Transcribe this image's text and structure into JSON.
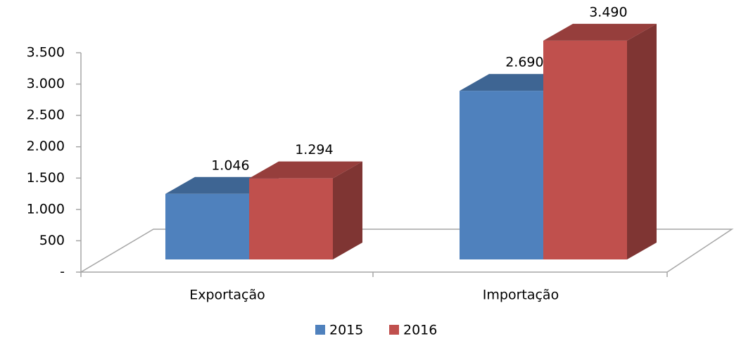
{
  "chart_data": {
    "type": "bar3d",
    "categories": [
      "Exportação",
      "Importação"
    ],
    "series": [
      {
        "name": "2015",
        "color": "#4f81bd",
        "values": [
          1046,
          2690
        ],
        "value_labels": [
          "1.046",
          "2.690"
        ]
      },
      {
        "name": "2016",
        "color": "#c0504d",
        "values": [
          1294,
          3490
        ],
        "value_labels": [
          "1.294",
          "3.490"
        ]
      }
    ],
    "ylim": [
      0,
      3500
    ],
    "yticks": [
      {
        "value": 0,
        "label": "-"
      },
      500,
      {
        "value": 1000,
        "label": "1.000"
      },
      {
        "value": 1500,
        "label": "1.500"
      },
      {
        "value": 2000,
        "label": "2.000"
      },
      {
        "value": 2500,
        "label": "2.500"
      },
      {
        "value": 3000,
        "label": "3.000"
      },
      {
        "value": 3500,
        "label": "3.500"
      }
    ],
    "legend": "bottom"
  }
}
